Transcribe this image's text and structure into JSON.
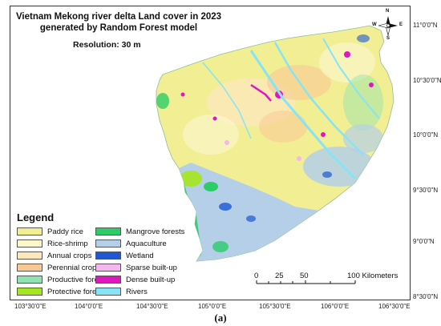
{
  "title_line1": "Vietnam Mekong river delta Land cover in 2023",
  "title_line2": "generated by Random Forest model",
  "resolution": "Resolution: 30 m",
  "legend": {
    "title": "Legend",
    "items": [
      {
        "label": "Paddy rice",
        "color": "#f2ee93"
      },
      {
        "label": "Rice-shrimp",
        "color": "#fbf7c9"
      },
      {
        "label": "Annual crops",
        "color": "#fde7bd"
      },
      {
        "label": "Perennial crops",
        "color": "#f9c995"
      },
      {
        "label": "Productive forests",
        "color": "#8fe3b0"
      },
      {
        "label": "Protective forests",
        "color": "#a5e61e"
      },
      {
        "label": "Mangrove forests",
        "color": "#2ccc69"
      },
      {
        "label": "Aquaculture",
        "color": "#b5cfe8"
      },
      {
        "label": "Wetland",
        "color": "#1d57d6"
      },
      {
        "label": "Sparse built-up",
        "color": "#f3b6ef"
      },
      {
        "label": "Dense built-up",
        "color": "#e016bf"
      },
      {
        "label": "Rivers",
        "color": "#86e4f6"
      }
    ]
  },
  "compass": {
    "n": "N",
    "s": "S",
    "e": "E",
    "w": "W"
  },
  "scale_bar": {
    "labels": [
      "0",
      "25",
      "50",
      "100 Kilometers"
    ]
  },
  "longitude_ticks": [
    "103°30'0\"E",
    "104°0'0\"E",
    "104°30'0\"E",
    "105°0'0\"E",
    "105°30'0\"E",
    "106°0'0\"E",
    "106°30'0\"E"
  ],
  "latitude_ticks": [
    "11°0'0\"N",
    "10°30'0\"N",
    "10°0'0\"N",
    "9°30'0\"N",
    "9°0'0\"N",
    "8°30'0\"N"
  ],
  "caption": "(a)"
}
